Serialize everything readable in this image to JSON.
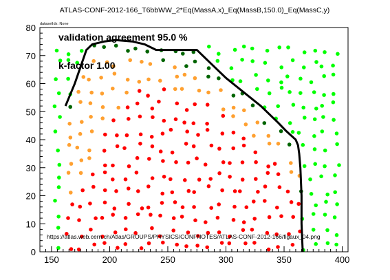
{
  "chart_data": {
    "type": "scatter",
    "title": "ATLAS-CONF-2012-166_T6bbWW_2*Eq(MassA,x)_Eq(MassB,150.0)_Eq(MassC,y)",
    "small_label": "datasetIdx: None",
    "annotations": {
      "validation": "validation agreement 95.0 %",
      "kfactor": "k-factor 1.00",
      "url": "https://atlas.web.cern.ch/Atlas/GROUPS/PHYSICS/CONFNOTES/ATLAS-CONF-2012-166/figaux_04.png"
    },
    "xlabel": "",
    "ylabel": "",
    "xlim": [
      140,
      405
    ],
    "ylim": [
      0,
      80
    ],
    "x_ticks": [
      150,
      200,
      250,
      300,
      350,
      400
    ],
    "y_ticks": [
      0,
      10,
      20,
      30,
      40,
      50,
      60,
      70,
      80
    ],
    "colors": {
      "red": "#ff0000",
      "orange": "#ffa030",
      "darkgreen": "#006400",
      "lightgreen": "#00ff00",
      "contour": "#000000"
    },
    "contour": [
      [
        162,
        52
      ],
      [
        170,
        60
      ],
      [
        180,
        72
      ],
      [
        185,
        74
      ],
      [
        195,
        75
      ],
      [
        205,
        75.5
      ],
      [
        220,
        75
      ],
      [
        230,
        74
      ],
      [
        240,
        72
      ],
      [
        250,
        72
      ],
      [
        265,
        72
      ],
      [
        275,
        72
      ],
      [
        285,
        68
      ],
      [
        300,
        62
      ],
      [
        315,
        57
      ],
      [
        330,
        52
      ],
      [
        345,
        46
      ],
      [
        352,
        43
      ],
      [
        360,
        40
      ],
      [
        362,
        38
      ],
      [
        363,
        35
      ],
      [
        364,
        30
      ],
      [
        365,
        20
      ],
      [
        365,
        10
      ],
      [
        366,
        0
      ]
    ],
    "series_generation": {
      "x_columns": [
        155,
        165,
        175,
        185,
        195,
        205,
        215,
        225,
        235,
        245,
        255,
        265,
        275,
        285,
        295,
        305,
        315,
        325,
        335,
        345,
        355,
        365,
        375,
        385,
        395
      ],
      "y_spacing": 5,
      "y_min": 2,
      "y_max": 76
    }
  }
}
